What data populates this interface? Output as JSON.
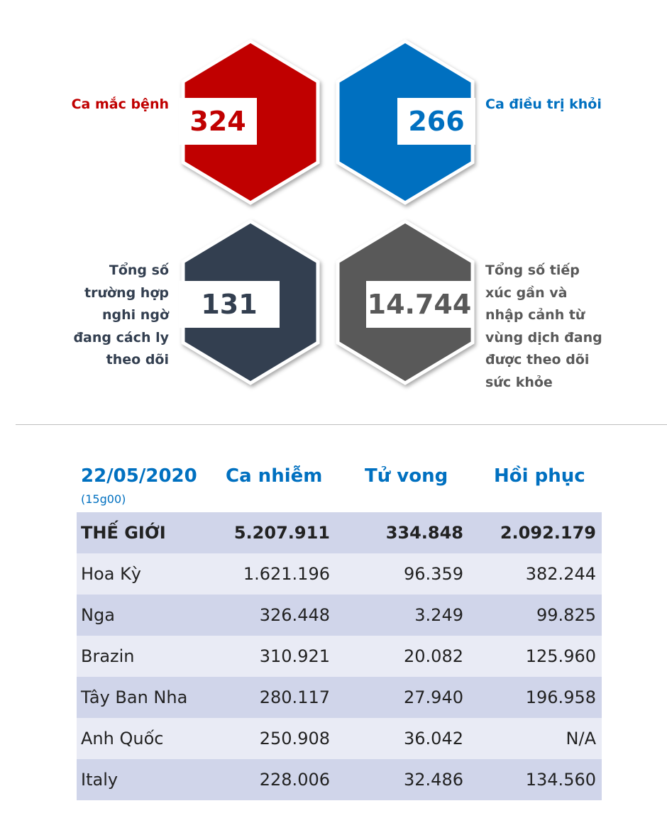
{
  "stats": {
    "infected": {
      "value": "324",
      "label": "Ca mắc bệnh",
      "color": "#c00000"
    },
    "recovered": {
      "value": "266",
      "label": "Ca điều trị khỏi",
      "color": "#0070c0"
    },
    "quarantine": {
      "value": "131",
      "label_lines": [
        "Tổng số",
        "trường hợp",
        "nghi ngờ",
        "đang cách ly",
        "theo dõi"
      ],
      "color": "#333f50"
    },
    "monitored": {
      "value": "14.744",
      "label_lines": [
        "Tổng số tiếp",
        "xúc gần và",
        "nhập cảnh từ",
        "vùng dịch đang",
        "được theo dõi",
        "sức khỏe"
      ],
      "color": "#595959"
    }
  },
  "table": {
    "date": "22/05/2020",
    "time": "(15g00)",
    "headers": [
      "Ca nhiễm",
      "Tử vong",
      "Hồi phục"
    ],
    "rows": [
      {
        "name": "THẾ GIỚI",
        "cases": "5.207.911",
        "deaths": "334.848",
        "recovered": "2.092.179"
      },
      {
        "name": "Hoa Kỳ",
        "cases": "1.621.196",
        "deaths": "96.359",
        "recovered": "382.244"
      },
      {
        "name": "Nga",
        "cases": "326.448",
        "deaths": "3.249",
        "recovered": "99.825"
      },
      {
        "name": "Brazin",
        "cases": "310.921",
        "deaths": "20.082",
        "recovered": "125.960"
      },
      {
        "name": "Tây Ban Nha",
        "cases": "280.117",
        "deaths": "27.940",
        "recovered": "196.958"
      },
      {
        "name": "Anh Quốc",
        "cases": "250.908",
        "deaths": "36.042",
        "recovered": "N/A"
      },
      {
        "name": "Italy",
        "cases": "228.006",
        "deaths": "32.486",
        "recovered": "134.560"
      }
    ]
  }
}
